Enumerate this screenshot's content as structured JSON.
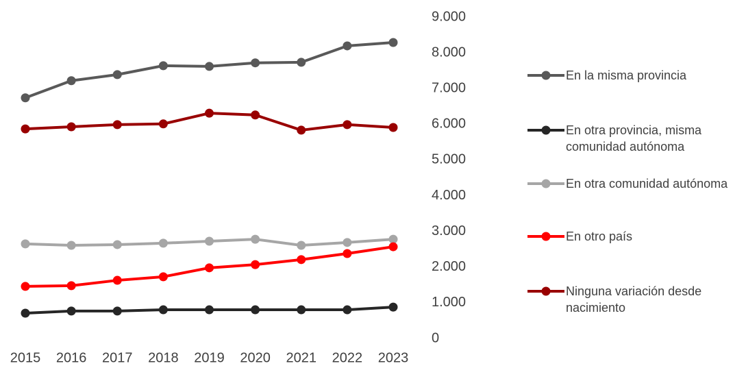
{
  "chart_data": {
    "type": "line",
    "x": [
      "2015",
      "2016",
      "2017",
      "2018",
      "2019",
      "2020",
      "2021",
      "2022",
      "2023"
    ],
    "series": [
      {
        "name": "En la misma provincia",
        "color": "#595959",
        "values": [
          6740,
          7220,
          7390,
          7640,
          7620,
          7720,
          7735,
          8195,
          8290
        ]
      },
      {
        "name": "En otra provincia, misma comunidad autónoma",
        "color": "#262626",
        "values": [
          710,
          770,
          770,
          805,
          805,
          805,
          805,
          805,
          880
        ]
      },
      {
        "name": "En otra comunidad autónoma",
        "color": "#a6a6a6",
        "values": [
          2650,
          2610,
          2630,
          2670,
          2725,
          2780,
          2610,
          2690,
          2780
        ]
      },
      {
        "name": "En otro país",
        "color": "#ff0000",
        "values": [
          1460,
          1480,
          1630,
          1730,
          1980,
          2070,
          2210,
          2380,
          2570
        ]
      },
      {
        "name": "Ninguna variación desde nacimiento",
        "color": "#990000",
        "values": [
          5870,
          5930,
          5990,
          6010,
          6310,
          6260,
          5835,
          5990,
          5910
        ]
      }
    ],
    "ylim": [
      0,
      9000
    ],
    "yticks": [
      0,
      {
        "value": 1000,
        "label": "1.000"
      },
      {
        "value": 2000,
        "label": "2.000"
      },
      {
        "value": 3000,
        "label": "3.000"
      },
      {
        "value": 4000,
        "label": "4.000"
      },
      {
        "value": 5000,
        "label": "5.000"
      },
      {
        "value": 6000,
        "label": "6.000"
      },
      {
        "value": 7000,
        "label": "7.000"
      },
      {
        "value": 8000,
        "label": "8.000"
      },
      {
        "value": 9000,
        "label": "9.000"
      }
    ],
    "y_axis_side": "right",
    "grid": false,
    "legend": "right"
  }
}
